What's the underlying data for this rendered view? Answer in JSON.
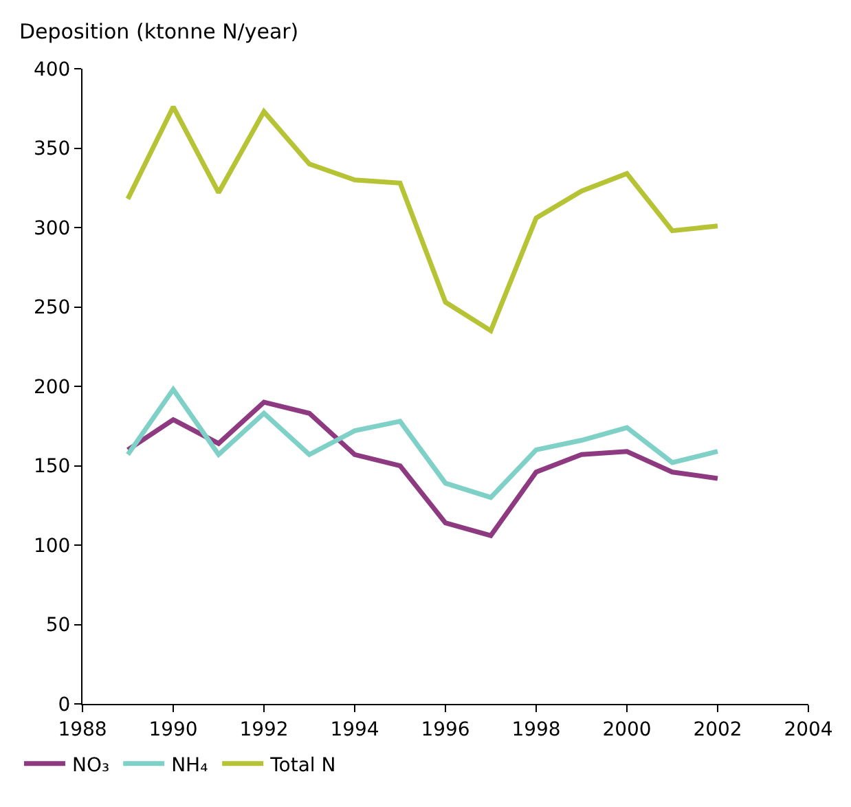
{
  "chart_data": {
    "type": "line",
    "ylabel": "Deposition (ktonne N/year)",
    "x": [
      1989,
      1990,
      1991,
      1992,
      1993,
      1994,
      1995,
      1996,
      1997,
      1998,
      1999,
      2000,
      2001,
      2002
    ],
    "series": [
      {
        "name": "NO₃",
        "color": "#8e3a80",
        "values": [
          160,
          179,
          164,
          190,
          183,
          157,
          150,
          114,
          106,
          146,
          157,
          159,
          146,
          142
        ]
      },
      {
        "name": "NH₄",
        "color": "#7fd1c8",
        "values": [
          157,
          198,
          157,
          183,
          157,
          172,
          178,
          139,
          130,
          160,
          166,
          174,
          152,
          159
        ]
      },
      {
        "name": "Total N",
        "color": "#b5c334",
        "values": [
          318,
          376,
          322,
          373,
          340,
          330,
          328,
          253,
          235,
          306,
          323,
          334,
          298,
          301
        ]
      }
    ],
    "xlim": [
      1988,
      2004
    ],
    "xticks": [
      1988,
      1990,
      1992,
      1994,
      1996,
      1998,
      2000,
      2002,
      2004
    ],
    "ylim": [
      0,
      400
    ],
    "yticks": [
      0,
      50,
      100,
      150,
      200,
      250,
      300,
      350,
      400
    ],
    "grid": false,
    "legend": "bottom",
    "marker": "none",
    "line_style": "solid"
  }
}
